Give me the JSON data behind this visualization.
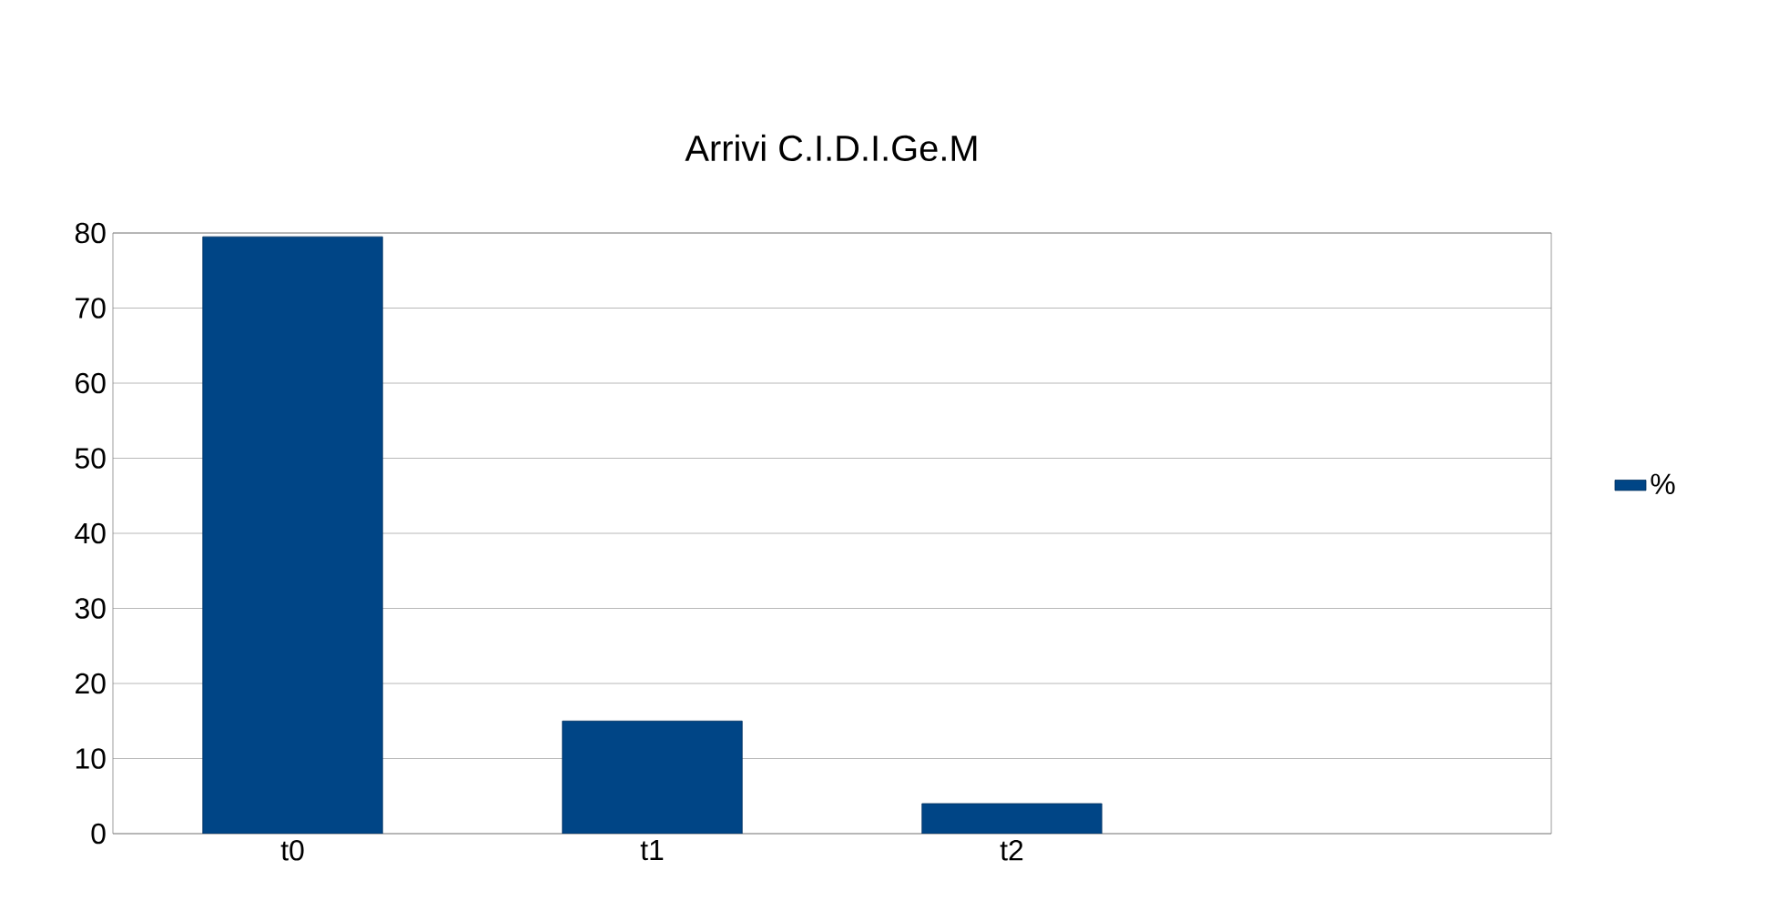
{
  "chart_data": {
    "type": "bar",
    "title": "Arrivi C.I.D.I.Ge.M",
    "categories": [
      "t0",
      "t1",
      "t2",
      null
    ],
    "series": [
      {
        "name": "%",
        "color": "#004586",
        "values": [
          79.5,
          15,
          4,
          null
        ]
      }
    ],
    "ylim": [
      0,
      80
    ],
    "yticks": [
      0,
      10,
      20,
      30,
      40,
      50,
      60,
      70,
      80
    ],
    "grid": "y",
    "legend": "right"
  }
}
